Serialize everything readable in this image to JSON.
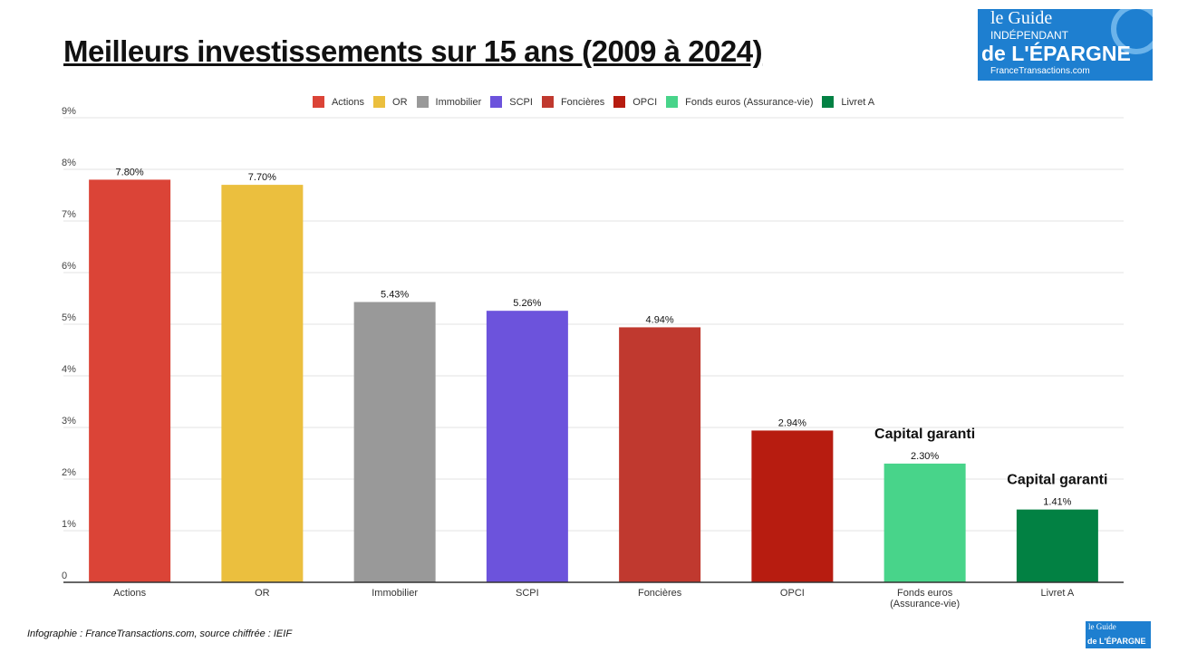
{
  "title": "Meilleurs investissements sur 15 ans (2009 à 2024)",
  "logo": {
    "line1": "le Guide",
    "line2": "INDÉPENDANT",
    "line3": "de L'ÉPARGNE",
    "site": "FranceTransactions.com"
  },
  "footer": "Infographie : FranceTransactions.com, source chiffrée : IEIF",
  "chart_data": {
    "type": "bar",
    "title": "",
    "xlabel": "",
    "ylabel": "",
    "ylim": [
      0,
      9
    ],
    "yticks": [
      "0",
      "1%",
      "2%",
      "3%",
      "4%",
      "5%",
      "6%",
      "7%",
      "8%",
      "9%"
    ],
    "grid": true,
    "legend": "top",
    "categories": [
      "Actions",
      "OR",
      "Immobilier",
      "SCPI",
      "Foncières",
      "OPCI",
      "Fonds euros (Assurance-vie)",
      "Livret A"
    ],
    "tick_labels": [
      [
        "Actions"
      ],
      [
        "OR"
      ],
      [
        "Immobilier"
      ],
      [
        "SCPI"
      ],
      [
        "Foncières"
      ],
      [
        "OPCI"
      ],
      [
        "Fonds euros",
        "(Assurance-vie)"
      ],
      [
        "Livret A"
      ]
    ],
    "values": [
      7.8,
      7.7,
      5.43,
      5.26,
      4.94,
      2.94,
      2.3,
      1.41
    ],
    "data_labels": [
      "7.80%",
      "7.70%",
      "5.43%",
      "5.26%",
      "4.94%",
      "2.94%",
      "2.30%",
      "1.41%"
    ],
    "colors": [
      "#db4437",
      "#ebbf3e",
      "#999999",
      "#6c53dc",
      "#c0392f",
      "#b71c10",
      "#48d48a",
      "#028143"
    ],
    "annotations": [
      {
        "category": "Fonds euros (Assurance-vie)",
        "text": "Capital garanti"
      },
      {
        "category": "Livret A",
        "text": "Capital garanti"
      }
    ]
  }
}
